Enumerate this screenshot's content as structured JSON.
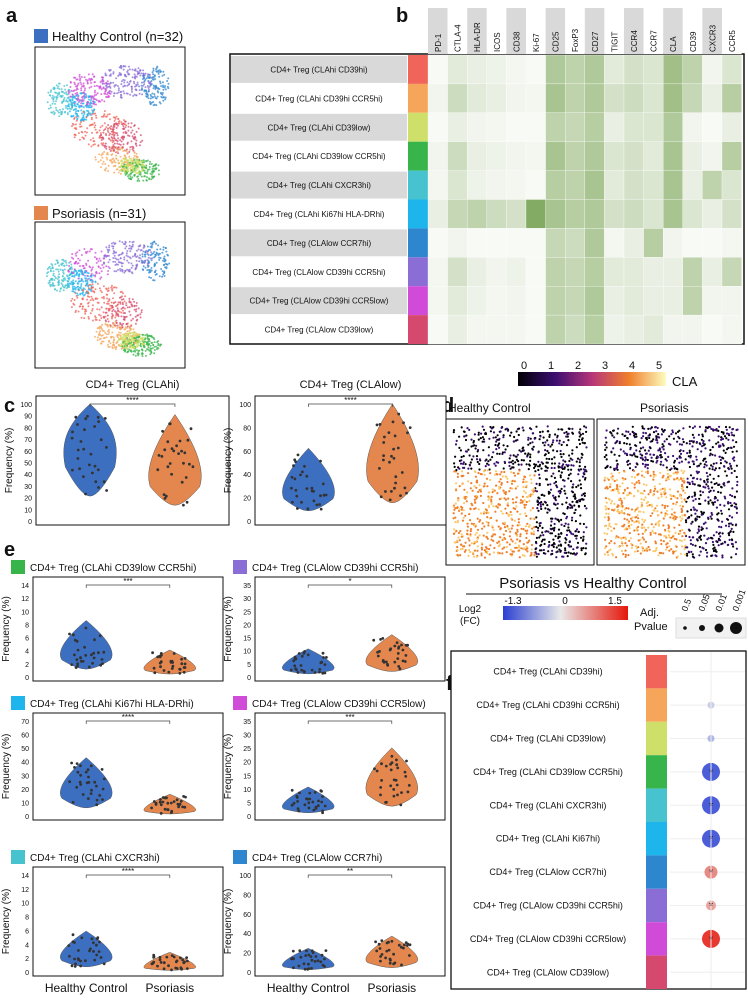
{
  "colors": {
    "healthy": "#3d6fc0",
    "psoriasis": "#e4874f",
    "frame": "#111111",
    "cluster_colors": [
      "#f0645a",
      "#f6a65a",
      "#cfe06a",
      "#38b54a",
      "#46c3cf",
      "#1eb5ec",
      "#2e86cf",
      "#8a6ed6",
      "#d04bd7",
      "#d6496e"
    ]
  },
  "panel_letters": {
    "a": "a",
    "b": "b",
    "c": "c",
    "d": "d",
    "e": "e",
    "f": "f"
  },
  "panel_a": {
    "healthy_label": "Healthy Control (n=32)",
    "psoriasis_label": "Psoriasis (n=31)"
  },
  "clusters_full": [
    "CD4+ Treg (CLAhi CD39hi)",
    "CD4+ Treg (CLAhi CD39hi CCR5hi)",
    "CD4+ Treg (CLAhi CD39low)",
    "CD4+ Treg (CLAhi CD39low CCR5hi)",
    "CD4+ Treg (CLAhi CXCR3hi)",
    "CD4+ Treg (CLAhi Ki67hi HLA-DRhi)",
    "CD4+ Treg (CLAlow CCR7hi)",
    "CD4+ Treg (CLAlow CD39hi CCR5hi)",
    "CD4+ Treg (CLAlow CD39hi CCR5low)",
    "CD4+ Treg (CLAlow CD39low)"
  ],
  "heatmap": {
    "markers": [
      "PD-1",
      "CTLA-4",
      "HLA-DR",
      "ICOS",
      "CD38",
      "Ki-67",
      "CD25",
      "FoxP3",
      "CD27",
      "TIGIT",
      "CCR4",
      "CCR7",
      "CLA",
      "CD39",
      "CXCR3",
      "CCR5"
    ],
    "low_color": "#ffffff",
    "high_color": "#6e9c47",
    "values": [
      [
        0.05,
        0.2,
        0.15,
        0.12,
        0.08,
        0.05,
        0.55,
        0.45,
        0.55,
        0.2,
        0.3,
        0.25,
        0.65,
        0.45,
        0.1,
        0.25
      ],
      [
        0.1,
        0.35,
        0.2,
        0.15,
        0.1,
        0.08,
        0.6,
        0.45,
        0.55,
        0.3,
        0.35,
        0.25,
        0.65,
        0.4,
        0.15,
        0.5
      ],
      [
        0.05,
        0.15,
        0.1,
        0.08,
        0.05,
        0.05,
        0.45,
        0.4,
        0.5,
        0.15,
        0.25,
        0.25,
        0.55,
        0.1,
        0.05,
        0.15
      ],
      [
        0.1,
        0.35,
        0.15,
        0.12,
        0.1,
        0.08,
        0.6,
        0.45,
        0.55,
        0.25,
        0.3,
        0.2,
        0.6,
        0.15,
        0.1,
        0.5
      ],
      [
        0.08,
        0.25,
        0.12,
        0.1,
        0.08,
        0.05,
        0.5,
        0.45,
        0.6,
        0.2,
        0.3,
        0.25,
        0.6,
        0.15,
        0.45,
        0.25
      ],
      [
        0.15,
        0.4,
        0.45,
        0.35,
        0.3,
        0.85,
        0.6,
        0.5,
        0.55,
        0.3,
        0.35,
        0.25,
        0.6,
        0.25,
        0.15,
        0.3
      ],
      [
        0.05,
        0.1,
        0.05,
        0.05,
        0.05,
        0.05,
        0.4,
        0.35,
        0.55,
        0.08,
        0.15,
        0.5,
        0.1,
        0.05,
        0.05,
        0.08
      ],
      [
        0.08,
        0.3,
        0.15,
        0.1,
        0.12,
        0.05,
        0.45,
        0.4,
        0.5,
        0.2,
        0.2,
        0.15,
        0.15,
        0.45,
        0.15,
        0.4
      ],
      [
        0.08,
        0.2,
        0.12,
        0.08,
        0.1,
        0.05,
        0.45,
        0.4,
        0.55,
        0.15,
        0.2,
        0.15,
        0.15,
        0.45,
        0.1,
        0.1
      ],
      [
        0.05,
        0.15,
        0.08,
        0.08,
        0.08,
        0.05,
        0.45,
        0.35,
        0.5,
        0.12,
        0.15,
        0.2,
        0.1,
        0.1,
        0.05,
        0.08
      ]
    ]
  },
  "cla_scale": {
    "label": "CLA",
    "ticks": [
      "0",
      "1",
      "2",
      "3",
      "4",
      "5"
    ]
  },
  "panel_d": {
    "healthy_title": "Healthy Control",
    "psoriasis_title": "Psoriasis"
  },
  "violin_defaults": {
    "ylabel": "Frequency (%)",
    "groups": [
      "Healthy Control",
      "Psoriasis"
    ]
  },
  "chart_data": [
    {
      "type": "violin",
      "panel": "c",
      "title": "CD4+ Treg (CLAhi)",
      "ylabel": "Frequency (%)",
      "ylim": [
        0,
        100
      ],
      "yticks": [
        "0",
        "10",
        "20",
        "30",
        "40",
        "50",
        "60",
        "70",
        "80",
        "90",
        "100"
      ],
      "sig": "****",
      "groups": [
        "Healthy Control",
        "Psoriasis"
      ],
      "medians": [
        71,
        45
      ]
    },
    {
      "type": "violin",
      "panel": "c",
      "title": "CD4+ Treg (CLAlow)",
      "ylabel": "Frequency (%)",
      "ylim": [
        0,
        100
      ],
      "yticks": [
        "0",
        "20",
        "40",
        "60",
        "80",
        "100"
      ],
      "sig": "****",
      "groups": [
        "Healthy Control",
        "Psoriasis"
      ],
      "medians": [
        29,
        52
      ]
    },
    {
      "type": "violin",
      "panel": "e",
      "title": "CD4+ Treg (CLAhi CD39low CCR5hi)",
      "ylabel": "Frequency (%)",
      "ylim": [
        0,
        14
      ],
      "yticks": [
        "0",
        "2",
        "4",
        "6",
        "8",
        "10",
        "12",
        "14"
      ],
      "sig": "***",
      "groups": [
        "Healthy Control",
        "Psoriasis"
      ],
      "medians": [
        4,
        1.5
      ]
    },
    {
      "type": "violin",
      "panel": "e",
      "title": "CD4+ Treg (CLAlow CD39hi CCR5hi)",
      "ylabel": "Frequency (%)",
      "ylim": [
        0,
        35
      ],
      "yticks": [
        "0",
        "5",
        "10",
        "15",
        "20",
        "25",
        "30",
        "35"
      ],
      "sig": "*",
      "groups": [
        "Healthy Control",
        "Psoriasis"
      ],
      "medians": [
        4,
        7
      ]
    },
    {
      "type": "violin",
      "panel": "e",
      "title": "CD4+ Treg (CLAhi Ki67hi HLA-DRhi)",
      "ylabel": "Frequency (%)",
      "ylim": [
        0,
        70
      ],
      "yticks": [
        "0",
        "10",
        "20",
        "30",
        "40",
        "50",
        "60",
        "70"
      ],
      "sig": "****",
      "groups": [
        "Healthy Control",
        "Psoriasis"
      ],
      "medians": [
        20,
        5
      ]
    },
    {
      "type": "violin",
      "panel": "e",
      "title": "CD4+ Treg (CLAlow CD39hi CCR5low)",
      "ylabel": "Frequency (%)",
      "ylim": [
        0,
        35
      ],
      "yticks": [
        "0",
        "5",
        "10",
        "15",
        "20",
        "25",
        "30",
        "35"
      ],
      "sig": "***",
      "groups": [
        "Healthy Control",
        "Psoriasis"
      ],
      "medians": [
        4,
        12
      ]
    },
    {
      "type": "violin",
      "panel": "e",
      "title": "CD4+ Treg (CLAhi CXCR3hi)",
      "ylabel": "Frequency (%)",
      "ylim": [
        0,
        14
      ],
      "yticks": [
        "0",
        "2",
        "4",
        "6",
        "8",
        "10",
        "12",
        "14"
      ],
      "sig": "****",
      "groups": [
        "Healthy Control",
        "Psoriasis"
      ],
      "medians": [
        2.5,
        0.8
      ]
    },
    {
      "type": "violin",
      "panel": "e",
      "title": "CD4+ Treg (CLAlow CCR7hi)",
      "ylabel": "Frequency (%)",
      "ylim": [
        0,
        100
      ],
      "yticks": [
        "0",
        "20",
        "40",
        "60",
        "80",
        "100"
      ],
      "sig": "**",
      "groups": [
        "Healthy Control",
        "Psoriasis"
      ],
      "medians": [
        8,
        15
      ]
    },
    {
      "type": "dotplot",
      "panel": "f",
      "title": "Psoriasis vs Healthy Control",
      "color_label": "Log2 (FC)",
      "color_range": [
        -1.3,
        1.5
      ],
      "color_ticks": [
        "-1.3",
        "0",
        "1.5"
      ],
      "size_label": "Adj. Pvalue",
      "size_ticks": [
        "0.5",
        "0.05",
        "0.01",
        "0.001"
      ],
      "rows": [
        "CD4+ Treg (CLAhi CD39hi)",
        "CD4+ Treg (CLAhi CD39hi CCR5hi)",
        "CD4+ Treg (CLAhi CD39low)",
        "CD4+ Treg (CLAhi CD39low CCR5hi)",
        "CD4+ Treg (CLAhi CXCR3hi)",
        "CD4+ Treg (CLAhi Ki67hi)",
        "CD4+ Treg (CLAlow CCR7hi)",
        "CD4+ Treg (CLAlow CD39hi CCR5hi)",
        "CD4+ Treg (CLAlow CD39hi CCR5low)",
        "CD4+ Treg (CLAlow CD39low)"
      ],
      "log2fc": [
        0.0,
        -0.25,
        -0.45,
        -1.2,
        -1.2,
        -1.2,
        0.75,
        0.55,
        1.4,
        0.0
      ],
      "padj": [
        0.9,
        0.3,
        0.1,
        0.001,
        0.001,
        0.001,
        0.01,
        0.05,
        0.001,
        0.9
      ],
      "significant": [
        false,
        false,
        false,
        true,
        true,
        true,
        true,
        true,
        true,
        false
      ]
    }
  ]
}
